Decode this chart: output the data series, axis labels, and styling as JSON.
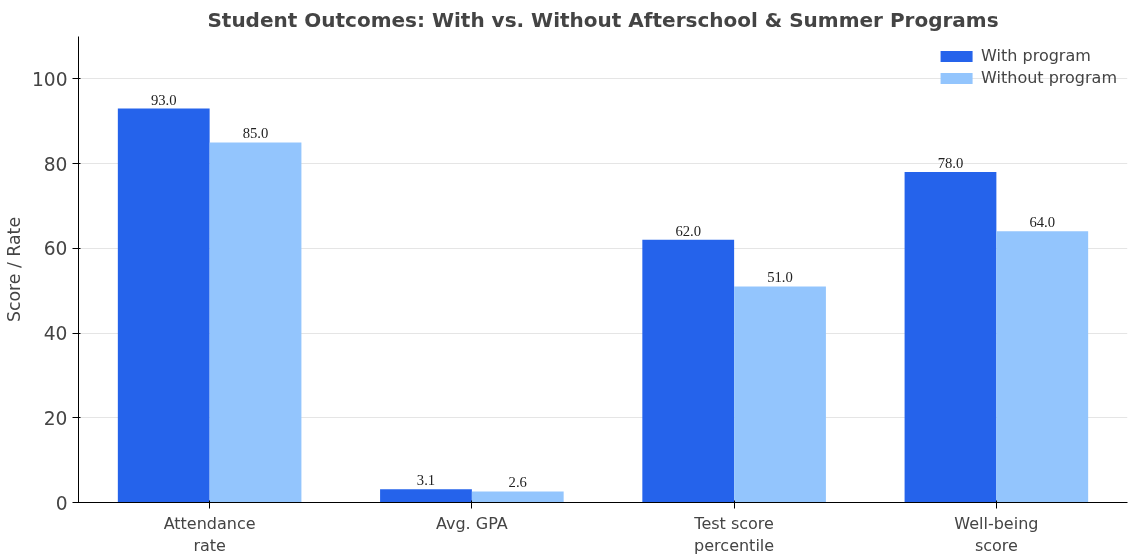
{
  "chart_data": {
    "type": "bar",
    "title": "Student Outcomes: With vs. Without Afterschool & Summer Programs",
    "ylabel": "Score / Rate",
    "categories": [
      "Attendance\nrate",
      "Avg. GPA",
      "Test score\npercentile",
      "Well-being\nscore"
    ],
    "series": [
      {
        "name": "With program",
        "color": "#2563eb",
        "values": [
          93.0,
          3.1,
          62.0,
          78.0
        ],
        "value_labels": [
          "93.0",
          "3.1",
          "62.0",
          "78.0"
        ]
      },
      {
        "name": "Without program",
        "color": "#93c5fd",
        "values": [
          85.0,
          2.6,
          51.0,
          64.0
        ],
        "value_labels": [
          "85.0",
          "2.6",
          "51.0",
          "64.0"
        ]
      }
    ],
    "ylim": [
      0,
      110
    ],
    "yticks": [
      0,
      20,
      40,
      60,
      80,
      100
    ],
    "grid": "y",
    "legend": "top right"
  }
}
